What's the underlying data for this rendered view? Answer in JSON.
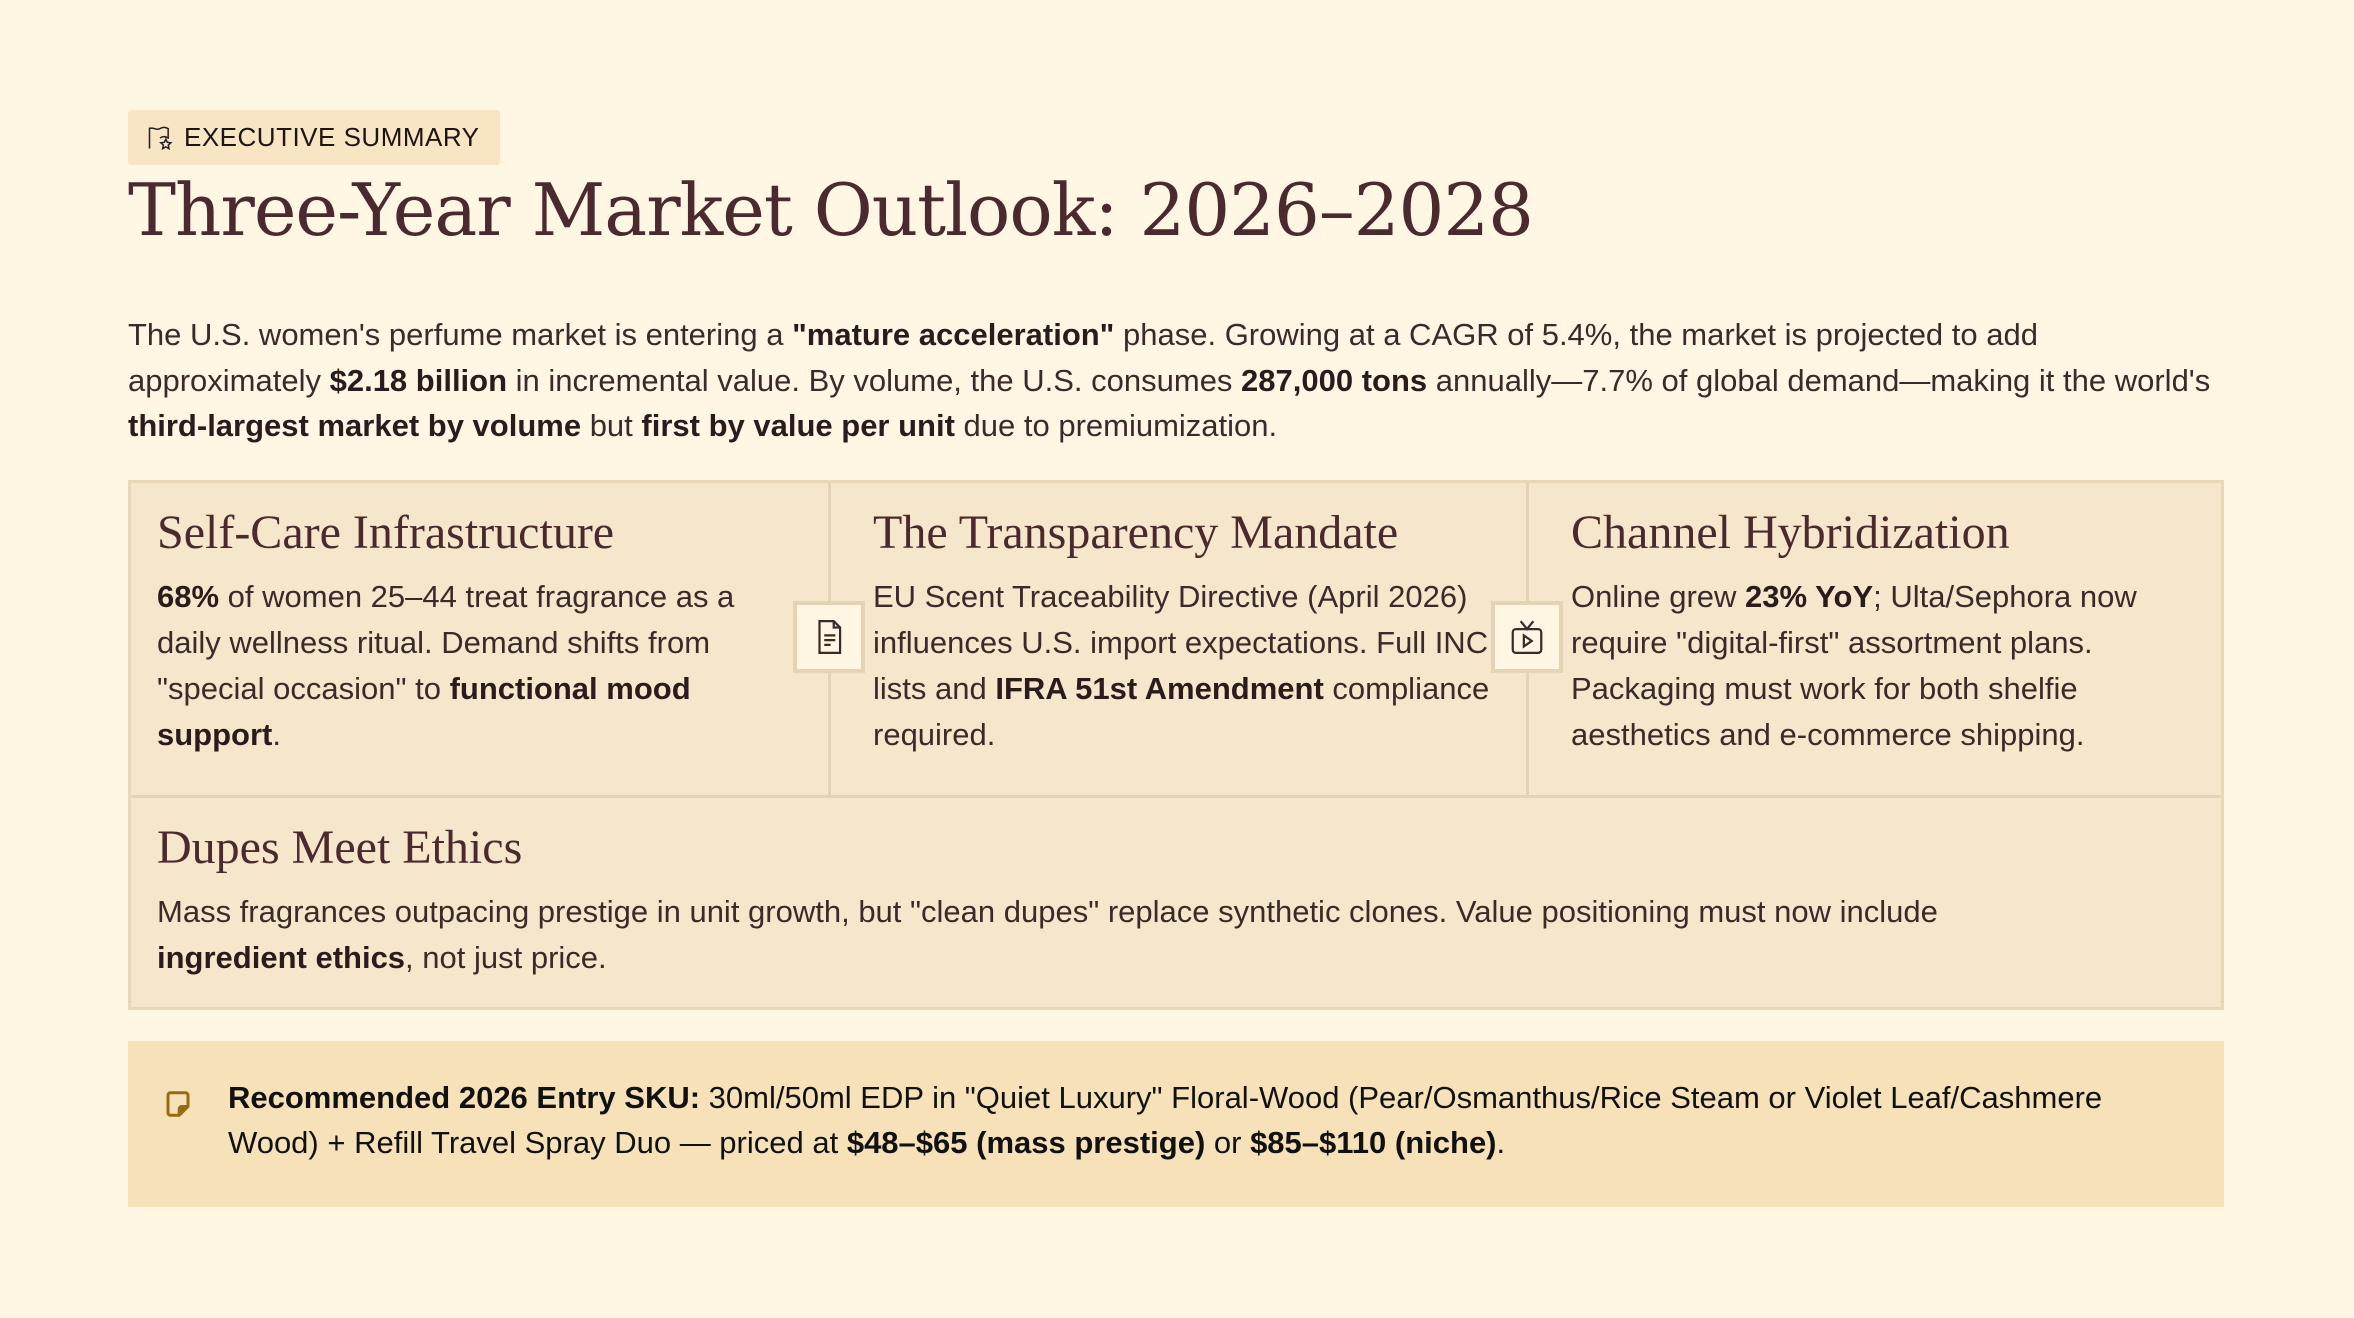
{
  "badge": {
    "icon": "flag-star-icon",
    "label": "EXECUTIVE SUMMARY"
  },
  "title": "Three-Year Market Outlook: 2026–2028",
  "intro": [
    {
      "t": "The U.S. women's perfume market is entering a "
    },
    {
      "t": "\"mature acceleration\"",
      "b": true
    },
    {
      "t": " phase. Growing at a CAGR of 5.4%, the market is projected to add approximately "
    },
    {
      "t": "$2.18 billion",
      "b": true
    },
    {
      "t": " in incremental value. By volume, the U.S. consumes "
    },
    {
      "t": "287,000 tons",
      "b": true
    },
    {
      "t": " annually—7.7% of global demand—making it the world's "
    },
    {
      "t": "third-largest market by volume",
      "b": true
    },
    {
      "t": " but "
    },
    {
      "t": "first by value per unit",
      "b": true
    },
    {
      "t": " due to premiumization."
    }
  ],
  "cards": [
    {
      "title": "Self-Care Infrastructure",
      "body": [
        {
          "t": "68%",
          "b": true
        },
        {
          "t": " of women 25–44 treat fragrance as a daily wellness ritual. Demand shifts from \"special occasion\" to "
        },
        {
          "t": "functional mood support",
          "b": true
        },
        {
          "t": "."
        }
      ]
    },
    {
      "title": "The Transparency Mandate",
      "body": [
        {
          "t": "EU Scent Traceability Directive (April 2026) influences U.S. import expectations. Full INCI lists and "
        },
        {
          "t": "IFRA 51st Amendment",
          "b": true
        },
        {
          "t": " compliance required."
        }
      ]
    },
    {
      "title": "Channel Hybridization",
      "body": [
        {
          "t": "Online grew "
        },
        {
          "t": "23% YoY",
          "b": true
        },
        {
          "t": "; Ulta/Sephora now require \"digital-first\" assortment plans. Packaging must work for both shelfie aesthetics and e-commerce shipping."
        }
      ]
    },
    {
      "title": "Dupes Meet Ethics",
      "body": [
        {
          "t": "Mass fragrances outpacing prestige in unit growth, but \"clean dupes\" replace synthetic clones. Value positioning must now include "
        },
        {
          "t": "ingredient ethics",
          "b": true
        },
        {
          "t": ", not just price."
        }
      ]
    }
  ],
  "dividers": [
    {
      "icon": "document-icon"
    },
    {
      "icon": "tv-play-icon"
    }
  ],
  "callout": {
    "icon": "sticky-note-icon",
    "body": [
      {
        "t": "Recommended 2026 Entry SKU:",
        "b": true
      },
      {
        "t": " 30ml/50ml EDP in \"Quiet Luxury\" Floral-Wood (Pear/Osmanthus/Rice Steam or Violet Leaf/Cashmere Wood) + Refill Travel Spray Duo — priced at "
      },
      {
        "t": "$48–$65 (mass prestige)",
        "b": true
      },
      {
        "t": " or "
      },
      {
        "t": "$85–$110 (niche)",
        "b": true
      },
      {
        "t": "."
      }
    ]
  },
  "colors": {
    "background": "#fff6e4",
    "card": "#f6e6cb",
    "callout": "#f6e1b8",
    "heading": "#4a2a2e",
    "accent": "#9a6a10"
  }
}
